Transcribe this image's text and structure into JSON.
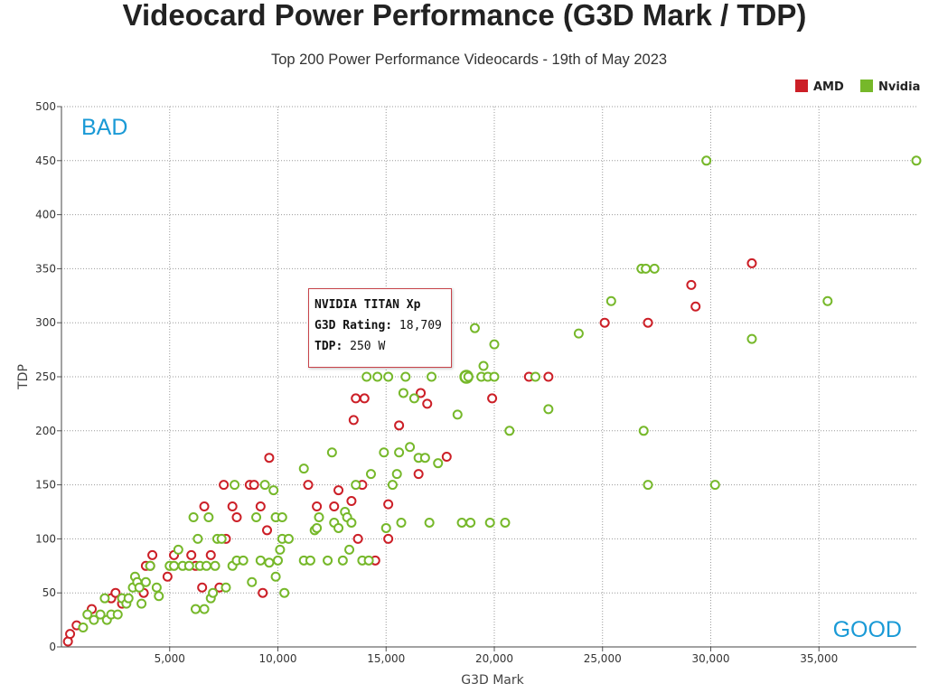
{
  "chart_data": {
    "type": "scatter",
    "title": "Videocard Power Performance (G3D Mark / TDP)",
    "subtitle": "Top 200 Power Performance Videocards - 19th of May 2023",
    "xlabel": "G3D Mark",
    "ylabel": "TDP",
    "xlim": [
      0,
      39500
    ],
    "ylim": [
      0,
      500
    ],
    "x_ticks": [
      "5,000",
      "10,000",
      "15,000",
      "20,000",
      "25,000",
      "30,000",
      "35,000"
    ],
    "x_tick_values": [
      5000,
      10000,
      15000,
      20000,
      25000,
      30000,
      35000
    ],
    "y_ticks": [
      "0",
      "50",
      "100",
      "150",
      "200",
      "250",
      "300",
      "350",
      "400",
      "450",
      "500"
    ],
    "y_tick_values": [
      0,
      50,
      100,
      150,
      200,
      250,
      300,
      350,
      400,
      450,
      500
    ],
    "grid": true,
    "legend_position": "top-right",
    "annotations": {
      "top_left": "BAD",
      "bottom_right": "GOOD"
    },
    "annotation_color": "#1a9ad6",
    "series": [
      {
        "name": "AMD",
        "color": "#cc1f27",
        "points": [
          [
            300,
            5
          ],
          [
            400,
            12
          ],
          [
            700,
            20
          ],
          [
            1400,
            35
          ],
          [
            2300,
            45
          ],
          [
            2500,
            50
          ],
          [
            2800,
            40
          ],
          [
            3800,
            50
          ],
          [
            3900,
            75
          ],
          [
            4100,
            75
          ],
          [
            4200,
            85
          ],
          [
            4900,
            65
          ],
          [
            5200,
            85
          ],
          [
            6000,
            85
          ],
          [
            6200,
            75
          ],
          [
            6500,
            55
          ],
          [
            6600,
            130
          ],
          [
            6900,
            85
          ],
          [
            7300,
            55
          ],
          [
            7500,
            150
          ],
          [
            7600,
            100
          ],
          [
            7900,
            130
          ],
          [
            8100,
            120
          ],
          [
            8700,
            150
          ],
          [
            8900,
            150
          ],
          [
            9200,
            130
          ],
          [
            9300,
            50
          ],
          [
            9500,
            108
          ],
          [
            9600,
            175
          ],
          [
            11400,
            150
          ],
          [
            11800,
            130
          ],
          [
            12600,
            130
          ],
          [
            12800,
            145
          ],
          [
            13400,
            135
          ],
          [
            13500,
            210
          ],
          [
            13600,
            230
          ],
          [
            13700,
            100
          ],
          [
            13900,
            150
          ],
          [
            14000,
            230
          ],
          [
            14500,
            80
          ],
          [
            15100,
            132
          ],
          [
            15100,
            100
          ],
          [
            15600,
            205
          ],
          [
            16500,
            160
          ],
          [
            16600,
            235
          ],
          [
            16900,
            225
          ],
          [
            17800,
            176
          ],
          [
            19900,
            230
          ],
          [
            21600,
            250
          ],
          [
            22500,
            250
          ],
          [
            25100,
            300
          ],
          [
            27100,
            300
          ],
          [
            29100,
            335
          ],
          [
            29300,
            315
          ],
          [
            31900,
            355
          ]
        ]
      },
      {
        "name": "Nvidia",
        "color": "#76b82a",
        "points": [
          [
            1000,
            18
          ],
          [
            1200,
            30
          ],
          [
            1500,
            25
          ],
          [
            1800,
            30
          ],
          [
            2000,
            45
          ],
          [
            2100,
            25
          ],
          [
            2300,
            30
          ],
          [
            2600,
            30
          ],
          [
            2800,
            45
          ],
          [
            3000,
            40
          ],
          [
            3100,
            45
          ],
          [
            3300,
            55
          ],
          [
            3400,
            65
          ],
          [
            3500,
            60
          ],
          [
            3600,
            55
          ],
          [
            3700,
            40
          ],
          [
            3900,
            60
          ],
          [
            4100,
            75
          ],
          [
            4400,
            55
          ],
          [
            4500,
            47
          ],
          [
            5000,
            75
          ],
          [
            5200,
            75
          ],
          [
            5400,
            90
          ],
          [
            5600,
            75
          ],
          [
            5900,
            75
          ],
          [
            6100,
            120
          ],
          [
            6200,
            35
          ],
          [
            6300,
            100
          ],
          [
            6400,
            75
          ],
          [
            6600,
            35
          ],
          [
            6700,
            75
          ],
          [
            6800,
            120
          ],
          [
            6900,
            45
          ],
          [
            7000,
            50
          ],
          [
            7100,
            75
          ],
          [
            7200,
            100
          ],
          [
            7400,
            100
          ],
          [
            7600,
            55
          ],
          [
            7900,
            75
          ],
          [
            8000,
            150
          ],
          [
            8100,
            80
          ],
          [
            8400,
            80
          ],
          [
            8800,
            60
          ],
          [
            9000,
            120
          ],
          [
            9200,
            80
          ],
          [
            9400,
            150
          ],
          [
            9600,
            78
          ],
          [
            9800,
            145
          ],
          [
            9900,
            120
          ],
          [
            9900,
            65
          ],
          [
            10000,
            80
          ],
          [
            10100,
            90
          ],
          [
            10200,
            100
          ],
          [
            10200,
            120
          ],
          [
            10300,
            50
          ],
          [
            10500,
            100
          ],
          [
            11200,
            80
          ],
          [
            11200,
            165
          ],
          [
            11500,
            80
          ],
          [
            11700,
            108
          ],
          [
            11800,
            110
          ],
          [
            11900,
            120
          ],
          [
            12300,
            80
          ],
          [
            12500,
            180
          ],
          [
            12600,
            115
          ],
          [
            12800,
            110
          ],
          [
            13000,
            80
          ],
          [
            13100,
            125
          ],
          [
            13200,
            120
          ],
          [
            13300,
            90
          ],
          [
            13400,
            115
          ],
          [
            13600,
            150
          ],
          [
            13900,
            80
          ],
          [
            14100,
            250
          ],
          [
            14200,
            80
          ],
          [
            14300,
            160
          ],
          [
            14600,
            250
          ],
          [
            14900,
            180
          ],
          [
            15000,
            110
          ],
          [
            15100,
            250
          ],
          [
            15300,
            150
          ],
          [
            15500,
            160
          ],
          [
            15600,
            180
          ],
          [
            15700,
            115
          ],
          [
            15800,
            235
          ],
          [
            15900,
            250
          ],
          [
            16100,
            185
          ],
          [
            16300,
            230
          ],
          [
            16500,
            175
          ],
          [
            16800,
            175
          ],
          [
            17000,
            115
          ],
          [
            17100,
            250
          ],
          [
            17400,
            170
          ],
          [
            18300,
            215
          ],
          [
            18500,
            115
          ],
          [
            18709,
            250
          ],
          [
            18800,
            250
          ],
          [
            18900,
            115
          ],
          [
            19100,
            295
          ],
          [
            19400,
            250
          ],
          [
            19500,
            260
          ],
          [
            19700,
            250
          ],
          [
            19800,
            115
          ],
          [
            20000,
            280
          ],
          [
            20000,
            250
          ],
          [
            20500,
            115
          ],
          [
            20700,
            200
          ],
          [
            21900,
            250
          ],
          [
            22500,
            220
          ],
          [
            23900,
            290
          ],
          [
            25400,
            320
          ],
          [
            26800,
            350
          ],
          [
            26900,
            200
          ],
          [
            27000,
            350
          ],
          [
            27100,
            150
          ],
          [
            27400,
            350
          ],
          [
            29800,
            450
          ],
          [
            30200,
            150
          ],
          [
            31900,
            285
          ],
          [
            35400,
            320
          ],
          [
            39500,
            450
          ]
        ]
      }
    ],
    "highlighted_point": {
      "series": "Nvidia",
      "x": 18709,
      "y": 250
    }
  },
  "tooltip": {
    "name": "NVIDIA TITAN Xp",
    "rating_label": "G3D Rating:",
    "rating_value": "18,709",
    "tdp_label": "TDP:",
    "tdp_value": "250 W"
  }
}
